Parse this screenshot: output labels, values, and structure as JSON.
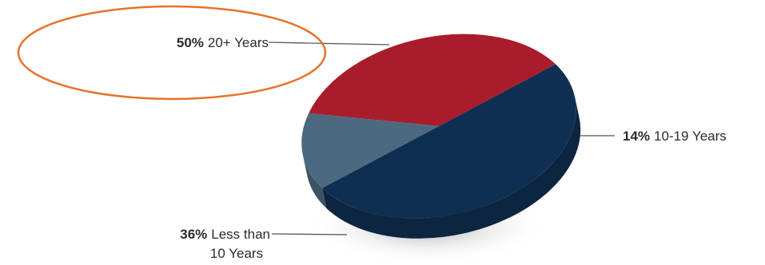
{
  "chart_data": {
    "type": "pie",
    "style": "3d-tilted",
    "slices": [
      {
        "pct_label": "50%",
        "label": "20+ Years",
        "value": 50,
        "color": "#0f2f52"
      },
      {
        "pct_label": "14%",
        "label": "10-19 Years",
        "value": 14,
        "color": "#4b6a80"
      },
      {
        "pct_label": "36%",
        "label_line1": "Less than",
        "label_line2": "10 Years",
        "value": 36,
        "color": "#a81c2b"
      }
    ],
    "highlight": {
      "shape": "ellipse",
      "target": "20+ Years",
      "color": "#e8722a"
    },
    "shadow_color": "#bdbdbd",
    "leader_color": "#555555"
  }
}
